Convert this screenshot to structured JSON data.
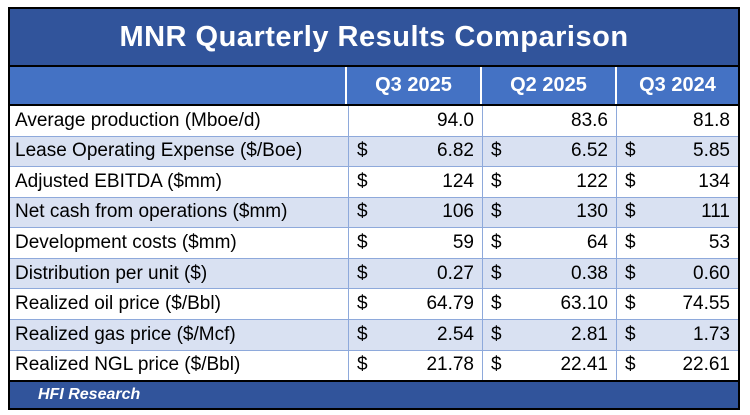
{
  "chart_data": {
    "type": "table",
    "title": "MNR Quarterly Results Comparison",
    "columns": [
      "Q3 2025",
      "Q2 2025",
      "Q3 2024"
    ],
    "currency_symbol": "$",
    "rows": [
      {
        "label": "Average production (Mboe/d)",
        "currency": false,
        "values": [
          "94.0",
          "83.6",
          "81.8"
        ]
      },
      {
        "label": "Lease Operating Expense ($/Boe)",
        "currency": true,
        "values": [
          "6.82",
          "6.52",
          "5.85"
        ]
      },
      {
        "label": "Adjusted EBITDA ($mm)",
        "currency": true,
        "values": [
          "124",
          "122",
          "134"
        ]
      },
      {
        "label": "Net cash from operations ($mm)",
        "currency": true,
        "values": [
          "106",
          "130",
          "111"
        ]
      },
      {
        "label": "Development costs ($mm)",
        "currency": true,
        "values": [
          "59",
          "64",
          "53"
        ]
      },
      {
        "label": "Distribution per unit ($)",
        "currency": true,
        "values": [
          "0.27",
          "0.38",
          "0.60"
        ]
      },
      {
        "label": "Realized oil price ($/Bbl)",
        "currency": true,
        "values": [
          "64.79",
          "63.10",
          "74.55"
        ]
      },
      {
        "label": "Realized gas price ($/Mcf)",
        "currency": true,
        "values": [
          "2.54",
          "2.81",
          "1.73"
        ]
      },
      {
        "label": "Realized NGL price ($/Bbl)",
        "currency": true,
        "values": [
          "21.78",
          "22.41",
          "22.61"
        ]
      }
    ],
    "footer": "HFI Research",
    "layout": {
      "grid": true,
      "alternating_row_shading": true
    }
  },
  "colors": {
    "title_bg": "#31549B",
    "header_bg": "#4472C4",
    "row_alt_bg": "#D9E1F2",
    "grid_border": "#8EA9DB",
    "outer_border": "#000000",
    "header_text": "#FFFFFF",
    "body_text": "#000000"
  }
}
